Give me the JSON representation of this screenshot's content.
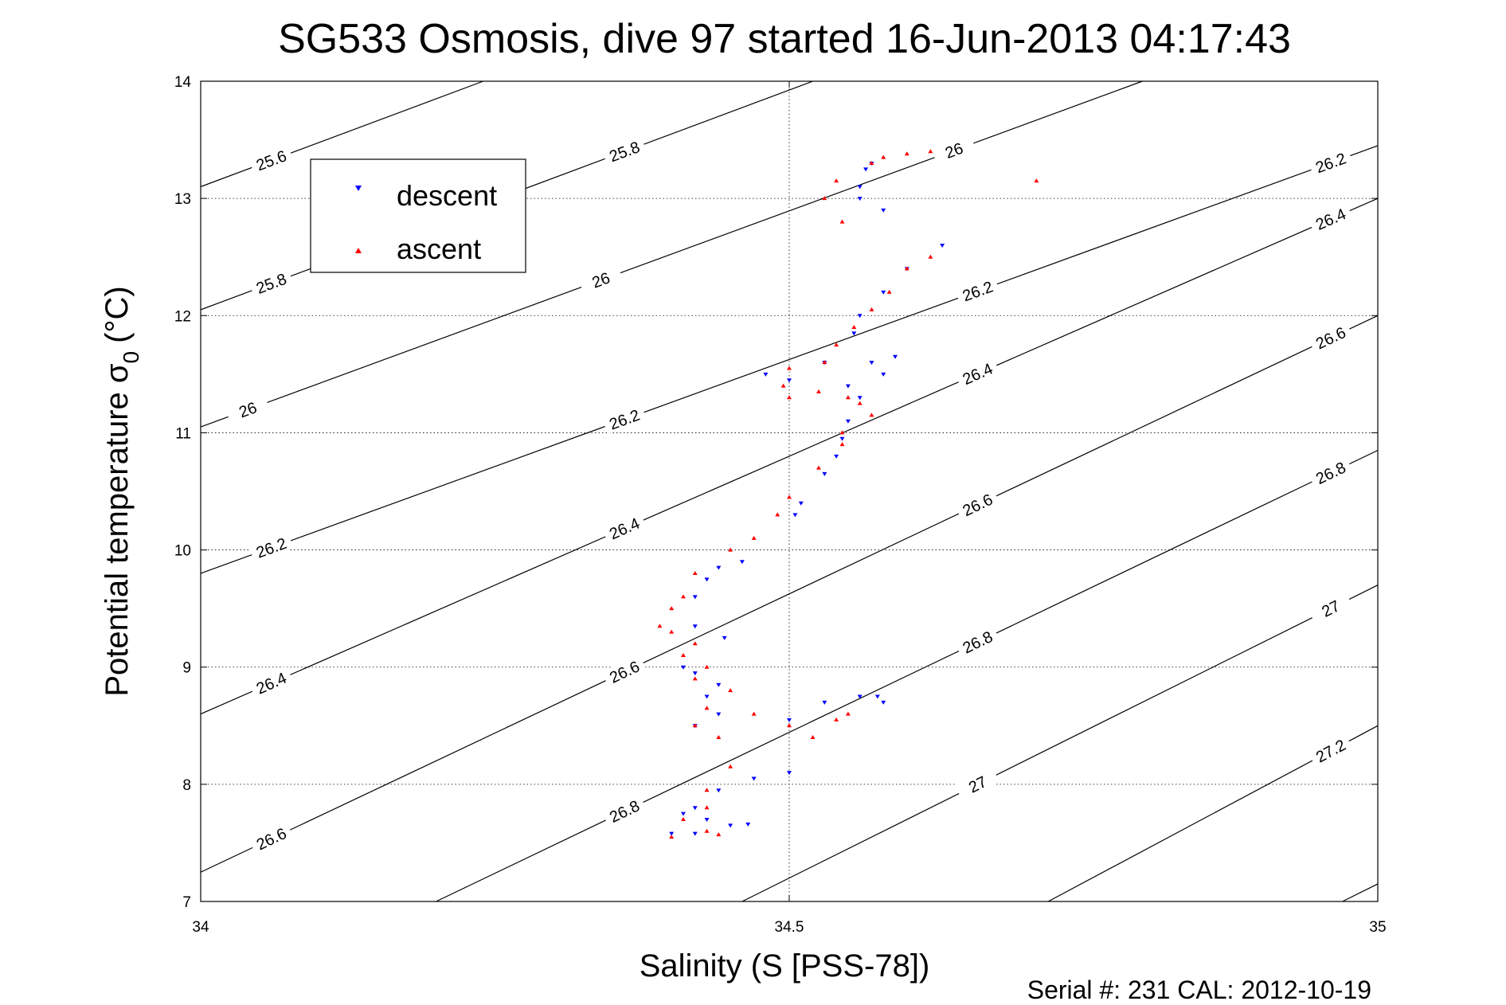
{
  "chart_data": {
    "type": "scatter",
    "title": "SG533 Osmosis, dive 97 started 16-Jun-2013 04:17:43",
    "xlabel": "Salinity (S [PSS-78])",
    "ylabel_main": "Potential temperature σ",
    "ylabel_sub": "0",
    "ylabel_unit": "(°C)",
    "xlim": [
      34,
      35
    ],
    "ylim": [
      7,
      14
    ],
    "xticks": [
      34,
      34.5,
      35
    ],
    "xtick_labels": [
      "34",
      "34.5",
      "35"
    ],
    "yticks": [
      7,
      8,
      9,
      10,
      11,
      12,
      13,
      14
    ],
    "ytick_labels": [
      "7",
      "8",
      "9",
      "10",
      "11",
      "12",
      "13",
      "14"
    ],
    "grid": true,
    "legend_position": "top-left",
    "series": [
      {
        "name": "descent",
        "marker": "triangle-down",
        "color": "#0000ff",
        "points": [
          [
            34.57,
            13.3
          ],
          [
            34.565,
            13.25
          ],
          [
            34.56,
            13.1
          ],
          [
            34.56,
            13.0
          ],
          [
            34.58,
            12.9
          ],
          [
            34.63,
            12.6
          ],
          [
            34.6,
            12.4
          ],
          [
            34.58,
            12.2
          ],
          [
            34.56,
            12.0
          ],
          [
            34.555,
            11.85
          ],
          [
            34.59,
            11.65
          ],
          [
            34.57,
            11.6
          ],
          [
            34.53,
            11.6
          ],
          [
            34.48,
            11.5
          ],
          [
            34.5,
            11.45
          ],
          [
            34.55,
            11.4
          ],
          [
            34.58,
            11.5
          ],
          [
            34.56,
            11.3
          ],
          [
            34.55,
            11.1
          ],
          [
            34.545,
            10.95
          ],
          [
            34.54,
            10.8
          ],
          [
            34.53,
            10.65
          ],
          [
            34.51,
            10.4
          ],
          [
            34.505,
            10.3
          ],
          [
            34.46,
            9.9
          ],
          [
            34.44,
            9.85
          ],
          [
            34.43,
            9.75
          ],
          [
            34.42,
            9.6
          ],
          [
            34.42,
            9.35
          ],
          [
            34.445,
            9.25
          ],
          [
            34.41,
            9.0
          ],
          [
            34.42,
            8.95
          ],
          [
            34.44,
            8.85
          ],
          [
            34.43,
            8.75
          ],
          [
            34.44,
            8.6
          ],
          [
            34.42,
            8.5
          ],
          [
            34.5,
            8.55
          ],
          [
            34.53,
            8.7
          ],
          [
            34.56,
            8.75
          ],
          [
            34.575,
            8.75
          ],
          [
            34.58,
            8.7
          ],
          [
            34.5,
            8.1
          ],
          [
            34.47,
            8.05
          ],
          [
            34.44,
            7.95
          ],
          [
            34.42,
            7.8
          ],
          [
            34.41,
            7.75
          ],
          [
            34.43,
            7.7
          ],
          [
            34.45,
            7.65
          ],
          [
            34.465,
            7.66
          ],
          [
            34.42,
            7.58
          ],
          [
            34.4,
            7.58
          ]
        ]
      },
      {
        "name": "ascent",
        "marker": "triangle-up",
        "color": "#ff0000",
        "points": [
          [
            34.62,
            13.4
          ],
          [
            34.6,
            13.38
          ],
          [
            34.58,
            13.35
          ],
          [
            34.57,
            13.3
          ],
          [
            34.54,
            13.15
          ],
          [
            34.53,
            13.0
          ],
          [
            34.545,
            12.8
          ],
          [
            34.71,
            13.15
          ],
          [
            34.62,
            12.5
          ],
          [
            34.6,
            12.4
          ],
          [
            34.585,
            12.2
          ],
          [
            34.57,
            12.05
          ],
          [
            34.555,
            11.9
          ],
          [
            34.54,
            11.75
          ],
          [
            34.53,
            11.6
          ],
          [
            34.5,
            11.55
          ],
          [
            34.495,
            11.4
          ],
          [
            34.5,
            11.3
          ],
          [
            34.525,
            11.35
          ],
          [
            34.55,
            11.3
          ],
          [
            34.56,
            11.25
          ],
          [
            34.57,
            11.15
          ],
          [
            34.545,
            11.0
          ],
          [
            34.545,
            10.9
          ],
          [
            34.525,
            10.7
          ],
          [
            34.5,
            10.45
          ],
          [
            34.49,
            10.3
          ],
          [
            34.47,
            10.1
          ],
          [
            34.45,
            10.0
          ],
          [
            34.42,
            9.8
          ],
          [
            34.41,
            9.6
          ],
          [
            34.4,
            9.5
          ],
          [
            34.39,
            9.35
          ],
          [
            34.4,
            9.3
          ],
          [
            34.42,
            9.2
          ],
          [
            34.41,
            9.1
          ],
          [
            34.43,
            9.0
          ],
          [
            34.42,
            8.9
          ],
          [
            34.45,
            8.8
          ],
          [
            34.43,
            8.65
          ],
          [
            34.42,
            8.5
          ],
          [
            34.44,
            8.4
          ],
          [
            34.47,
            8.6
          ],
          [
            34.5,
            8.5
          ],
          [
            34.54,
            8.55
          ],
          [
            34.55,
            8.6
          ],
          [
            34.52,
            8.4
          ],
          [
            34.45,
            8.15
          ],
          [
            34.43,
            7.95
          ],
          [
            34.43,
            7.8
          ],
          [
            34.41,
            7.7
          ],
          [
            34.43,
            7.6
          ],
          [
            34.44,
            7.57
          ],
          [
            34.4,
            7.55
          ]
        ]
      }
    ],
    "contours": [
      {
        "level": "25.6",
        "labels": [
          {
            "text": "25.6",
            "t": 0.06,
            "side": 1
          }
        ]
      },
      {
        "level": "25.8",
        "labels": [
          {
            "text": "25.8",
            "t": 0.06,
            "side": 1
          },
          {
            "text": "25.8",
            "t": 0.36,
            "side": 1
          }
        ]
      },
      {
        "level": "26",
        "labels": [
          {
            "text": "26",
            "t": 0.04,
            "side": 1
          },
          {
            "text": "26",
            "t": 0.34,
            "side": 1
          },
          {
            "text": "26",
            "t": 0.64,
            "side": 1
          }
        ]
      },
      {
        "level": "26.2",
        "labels": [
          {
            "text": "26.2",
            "t": 0.06,
            "side": 1
          },
          {
            "text": "26.2",
            "t": 0.36,
            "side": 1
          },
          {
            "text": "26.2",
            "t": 0.66,
            "side": 1
          },
          {
            "text": "26.2",
            "t": 0.96,
            "side": 1
          }
        ]
      },
      {
        "level": "26.4",
        "labels": [
          {
            "text": "26.4",
            "t": 0.06,
            "side": 1
          },
          {
            "text": "26.4",
            "t": 0.36,
            "side": 1
          },
          {
            "text": "26.4",
            "t": 0.66,
            "side": 1
          },
          {
            "text": "26.4",
            "t": 0.96,
            "side": 1
          }
        ]
      },
      {
        "level": "26.6",
        "labels": [
          {
            "text": "26.6",
            "t": 0.06,
            "side": 1
          },
          {
            "text": "26.6",
            "t": 0.36,
            "side": 1
          },
          {
            "text": "26.6",
            "t": 0.66,
            "side": 1
          },
          {
            "text": "26.6",
            "t": 0.96,
            "side": 1
          }
        ]
      },
      {
        "level": "26.8",
        "labels": [
          {
            "text": "26.8",
            "t": 0.36,
            "side": 1
          },
          {
            "text": "26.8",
            "t": 0.66,
            "side": 1
          },
          {
            "text": "26.8",
            "t": 0.96,
            "side": 1
          }
        ]
      },
      {
        "level": "27",
        "labels": [
          {
            "text": "27",
            "t": 0.66,
            "side": 1
          },
          {
            "text": "27",
            "t": 0.96,
            "side": 1
          }
        ]
      },
      {
        "level": "27.2",
        "labels": [
          {
            "text": "27.2",
            "t": 0.96,
            "side": 1
          }
        ]
      }
    ],
    "contour_geometry": [
      {
        "level": "25.6",
        "x0": 34.0,
        "y0": 13.1,
        "x1": 34.24,
        "y1": 14.0
      },
      {
        "level": "25.8",
        "x0": 34.0,
        "y0": 12.05,
        "x1": 34.52,
        "y1": 14.0
      },
      {
        "level": "26",
        "x0": 34.0,
        "y0": 11.05,
        "x1": 34.8,
        "y1": 14.0
      },
      {
        "level": "26.2",
        "x0": 34.0,
        "y0": 9.8,
        "x1": 35.0,
        "y1": 13.45
      },
      {
        "level": "26.4",
        "x0": 34.0,
        "y0": 8.6,
        "x1": 35.0,
        "y1": 13.0
      },
      {
        "level": "26.6",
        "x0": 34.0,
        "y0": 7.25,
        "x1": 35.0,
        "y1": 12.0
      },
      {
        "level": "26.8",
        "x0": 34.2,
        "y0": 7.0,
        "x1": 35.0,
        "y1": 10.85
      },
      {
        "level": "27",
        "x0": 34.46,
        "y0": 7.0,
        "x1": 35.0,
        "y1": 9.7
      },
      {
        "level": "27.2",
        "x0": 34.72,
        "y0": 7.0,
        "x1": 35.0,
        "y1": 8.5
      },
      {
        "level": "27.4",
        "x0": 34.97,
        "y0": 7.0,
        "x1": 35.0,
        "y1": 7.15
      }
    ],
    "legend": {
      "descent": "descent",
      "ascent": "ascent"
    },
    "footer": "Serial #: 231  CAL: 2012-10-19"
  }
}
